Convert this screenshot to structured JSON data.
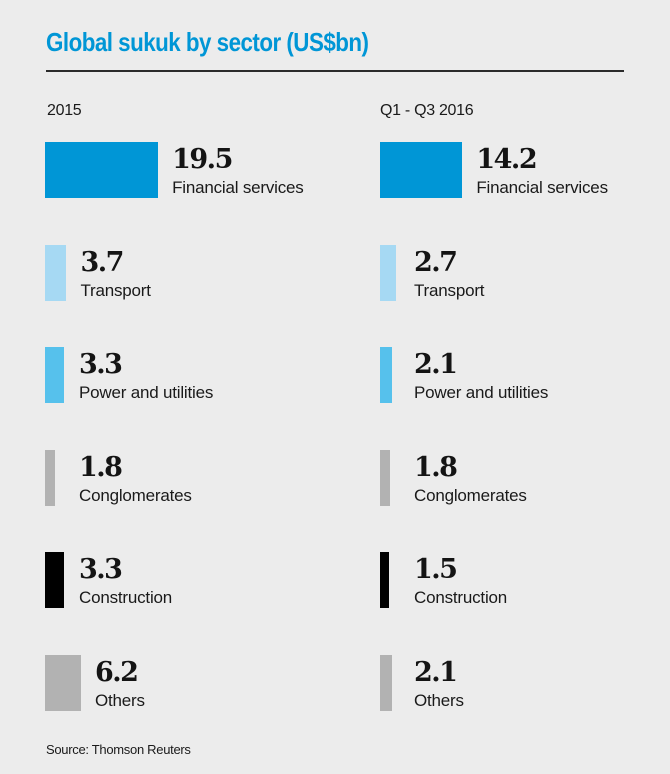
{
  "header": {
    "title": "Global sukuk by sector (US$bn)",
    "title_color": "#0096d6"
  },
  "source": "Source: Thomson Reuters",
  "chart_data": {
    "type": "bar",
    "title": "Global sukuk by sector (US$bn)",
    "unit": "US$bn",
    "categories": [
      "Financial services",
      "Transport",
      "Power and utilities",
      "Conglomerates",
      "Construction",
      "Others"
    ],
    "colors": [
      "#0096d6",
      "#a6d9f3",
      "#56c1ec",
      "#b2b2b2",
      "#000000",
      "#b2b2b2"
    ],
    "series": [
      {
        "name": "2015",
        "values": [
          19.5,
          3.7,
          3.3,
          1.8,
          3.3,
          6.2
        ],
        "labels": [
          "19.5",
          "3.7",
          "3.3",
          "1.8",
          "3.3",
          "6.2"
        ]
      },
      {
        "name": "Q1 - Q3 2016",
        "values": [
          14.2,
          2.7,
          2.1,
          1.8,
          1.5,
          2.1
        ],
        "labels": [
          "14.2",
          "2.7",
          "2.1",
          "1.8",
          "1.5",
          "2.1"
        ]
      }
    ],
    "orientation": "horizontal",
    "grid": false,
    "legend": "none",
    "source": "Thomson Reuters"
  }
}
